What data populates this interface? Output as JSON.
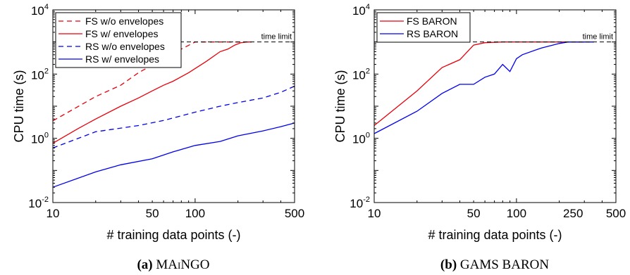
{
  "chart_data": [
    {
      "type": "line",
      "id": "a",
      "caption_label": "(a)",
      "caption_text": "MAiNGO",
      "xlabel": "# training data points (-)",
      "ylabel": "CPU time (s)",
      "xscale": "log",
      "yscale": "log",
      "xlim": [
        10,
        500
      ],
      "ylim": [
        0.01,
        10000
      ],
      "xticks": [
        10,
        50,
        100,
        500
      ],
      "xtick_labels": [
        "10",
        "50",
        "100",
        "500"
      ],
      "yticks": [
        0.01,
        1,
        100,
        10000
      ],
      "ytick_bases": [
        "10",
        "10",
        "10",
        "10"
      ],
      "ytick_exps": [
        "-2",
        "0",
        "2",
        "4"
      ],
      "time_limit": 1000,
      "time_limit_label": "time limit",
      "legend_position": "top-left",
      "series": [
        {
          "name": "FS w/o envelopes",
          "color": "#e8000b",
          "dash": "dashed",
          "x": [
            10,
            20,
            30,
            40,
            60,
            80,
            100,
            120,
            150,
            200,
            250
          ],
          "y": [
            3.5,
            20,
            45,
            110,
            300,
            600,
            1000,
            1000,
            1000,
            1000,
            1000
          ]
        },
        {
          "name": "FS w/ envelopes",
          "color": "#e8000b",
          "dash": "solid",
          "x": [
            10,
            15,
            20,
            30,
            40,
            50,
            60,
            70,
            90,
            120,
            150,
            170,
            190,
            210,
            230,
            250
          ],
          "y": [
            0.7,
            2,
            4,
            10,
            18,
            30,
            45,
            60,
            110,
            250,
            500,
            600,
            800,
            950,
            1000,
            1000
          ]
        },
        {
          "name": "RS w/o envelopes",
          "color": "#0000ee",
          "dash": "dashed",
          "x": [
            10,
            20,
            40,
            60,
            100,
            150,
            200,
            300,
            400,
            500
          ],
          "y": [
            0.5,
            1.6,
            2.5,
            3.6,
            6.5,
            10,
            13,
            18,
            27,
            42
          ]
        },
        {
          "name": "RS w/ envelopes",
          "color": "#0000ee",
          "dash": "solid",
          "x": [
            10,
            20,
            30,
            50,
            70,
            100,
            150,
            200,
            300,
            400,
            500
          ],
          "y": [
            0.03,
            0.09,
            0.15,
            0.23,
            0.38,
            0.6,
            0.8,
            1.2,
            1.7,
            2.3,
            3.0
          ]
        }
      ]
    },
    {
      "type": "line",
      "id": "b",
      "caption_label": "(b)",
      "caption_text": "GAMS BARON",
      "xlabel": "# training data points (-)",
      "ylabel": "CPU time (s)",
      "xscale": "log",
      "yscale": "log",
      "xlim": [
        10,
        500
      ],
      "ylim": [
        0.01,
        10000
      ],
      "xticks": [
        10,
        50,
        100,
        250,
        500
      ],
      "xtick_labels": [
        "10",
        "50",
        "100",
        "250",
        "500"
      ],
      "yticks": [
        0.01,
        1,
        100,
        10000
      ],
      "ytick_bases": [
        "10",
        "10",
        "10",
        "10"
      ],
      "ytick_exps": [
        "-2",
        "0",
        "2",
        "4"
      ],
      "time_limit": 1000,
      "time_limit_label": "time limit",
      "legend_position": "top-left",
      "series": [
        {
          "name": "FS BARON",
          "color": "#e8000b",
          "dash": "solid",
          "x": [
            10,
            20,
            30,
            40,
            50,
            60,
            80,
            100,
            200,
            300
          ],
          "y": [
            2.5,
            30,
            160,
            280,
            800,
            950,
            1000,
            1000,
            1000,
            1000
          ]
        },
        {
          "name": "RS BARON",
          "color": "#0000ee",
          "dash": "solid",
          "x": [
            10,
            20,
            30,
            40,
            50,
            60,
            70,
            80,
            90,
            100,
            110,
            150,
            200,
            230,
            300,
            350
          ],
          "y": [
            1.4,
            7,
            25,
            48,
            48,
            80,
            100,
            200,
            120,
            300,
            400,
            650,
            900,
            1000,
            1000,
            1000
          ]
        }
      ]
    }
  ]
}
